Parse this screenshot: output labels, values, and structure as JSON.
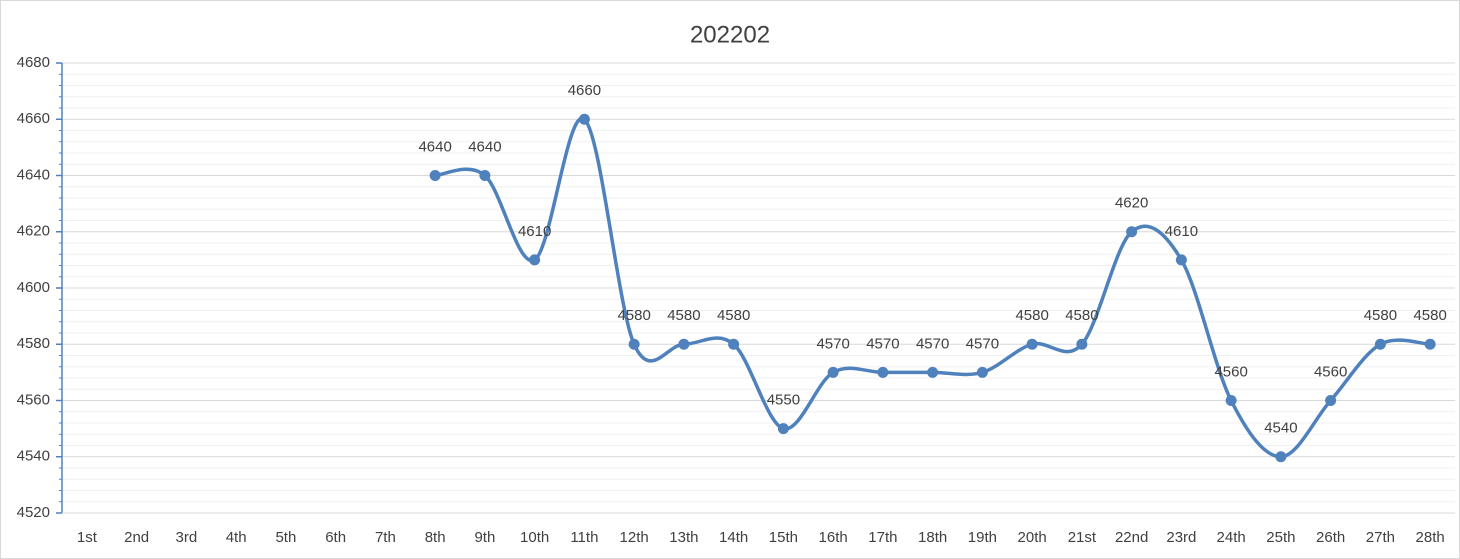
{
  "chart_data": {
    "type": "line",
    "title": "202202",
    "categories": [
      "1st",
      "2nd",
      "3rd",
      "4th",
      "5th",
      "6th",
      "7th",
      "8th",
      "9th",
      "10th",
      "11th",
      "12th",
      "13th",
      "14th",
      "15th",
      "16th",
      "17th",
      "18th",
      "19th",
      "20th",
      "21st",
      "22nd",
      "23rd",
      "24th",
      "25th",
      "26th",
      "27th",
      "28th"
    ],
    "values": [
      null,
      null,
      null,
      null,
      null,
      null,
      null,
      4640,
      4640,
      4610,
      4660,
      4580,
      4580,
      4580,
      4550,
      4570,
      4570,
      4570,
      4570,
      4580,
      4580,
      4620,
      4610,
      4560,
      4540,
      4560,
      4580,
      4580
    ],
    "color": "#4f81bd",
    "smooth": true,
    "data_labels": true,
    "ylim": [
      4520,
      4680
    ],
    "yticks": [
      4520,
      4540,
      4560,
      4580,
      4600,
      4620,
      4640,
      4660,
      4680
    ],
    "minor_yticks": [
      4524,
      4528,
      4532,
      4536,
      4544,
      4548,
      4552,
      4556,
      4564,
      4568,
      4572,
      4576,
      4584,
      4588,
      4592,
      4596,
      4604,
      4608,
      4612,
      4616,
      4624,
      4628,
      4632,
      4636,
      4644,
      4648,
      4652,
      4656,
      4664,
      4668,
      4672,
      4676
    ],
    "grid": true
  }
}
